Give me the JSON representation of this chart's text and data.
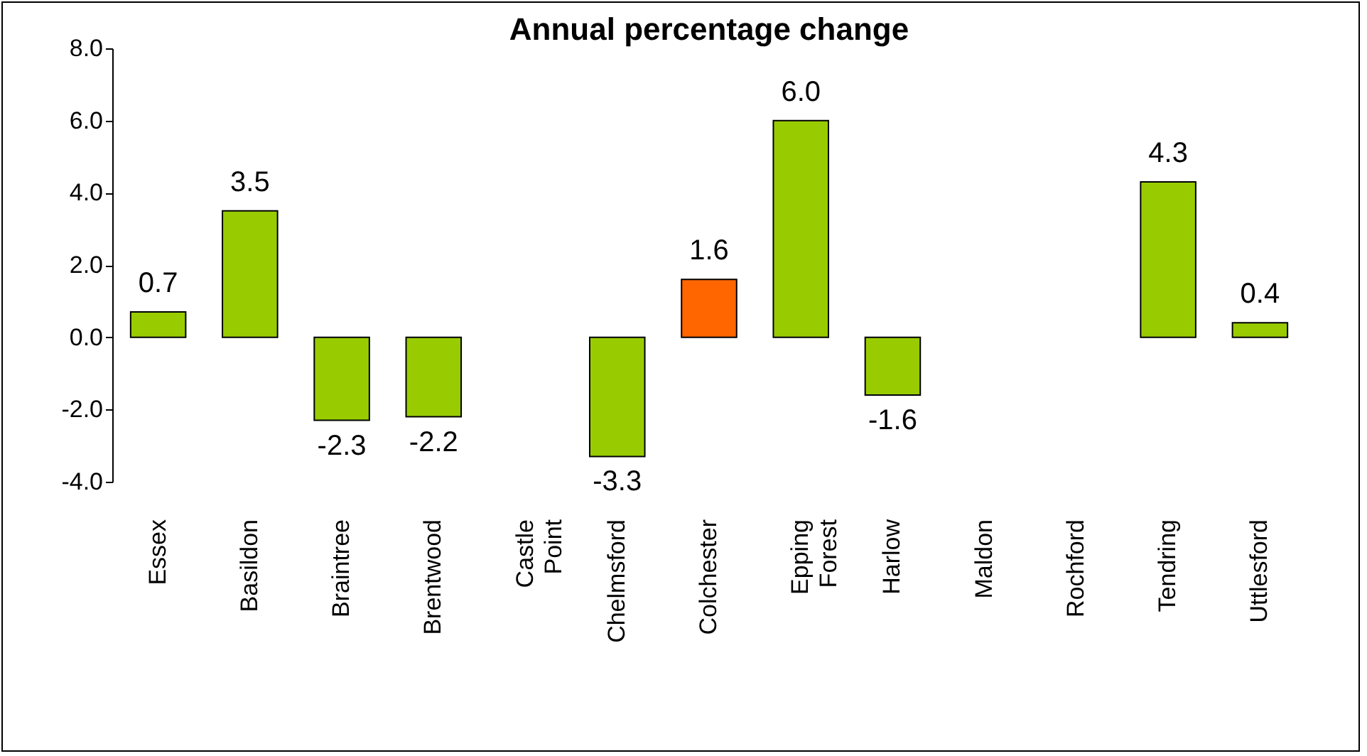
{
  "chart_data": {
    "type": "bar",
    "title": "Annual percentage change",
    "categories": [
      "Essex",
      "Basildon",
      "Braintree",
      "Brentwood",
      "Castle Point",
      "Chelmsford",
      "Colchester",
      "Epping Forest",
      "Harlow",
      "Maldon",
      "Rochford",
      "Tendring",
      "Uttlesford"
    ],
    "values": [
      0.7,
      3.5,
      -2.3,
      -2.2,
      null,
      -3.3,
      1.6,
      6.0,
      -1.6,
      null,
      null,
      4.3,
      0.4
    ],
    "value_labels": [
      "0.7",
      "3.5",
      "-2.3",
      "-2.2",
      null,
      "-3.3",
      "1.6",
      "6.0",
      "-1.6",
      null,
      null,
      "4.3",
      "0.4"
    ],
    "colors": [
      "#99cc00",
      "#99cc00",
      "#99cc00",
      "#99cc00",
      "#99cc00",
      "#99cc00",
      "#ff6600",
      "#99cc00",
      "#99cc00",
      "#99cc00",
      "#99cc00",
      "#99cc00",
      "#99cc00"
    ],
    "ylim": [
      -4,
      8
    ],
    "yticks": [
      {
        "value": -4,
        "label": "-4.0"
      },
      {
        "value": -2,
        "label": "-2.0"
      },
      {
        "value": 0,
        "label": "0.0"
      },
      {
        "value": 2,
        "label": "2.0"
      },
      {
        "value": 4,
        "label": "4.0"
      },
      {
        "value": 6,
        "label": "6.0"
      },
      {
        "value": 8,
        "label": "8.0"
      }
    ],
    "grid": false,
    "legend": false
  }
}
